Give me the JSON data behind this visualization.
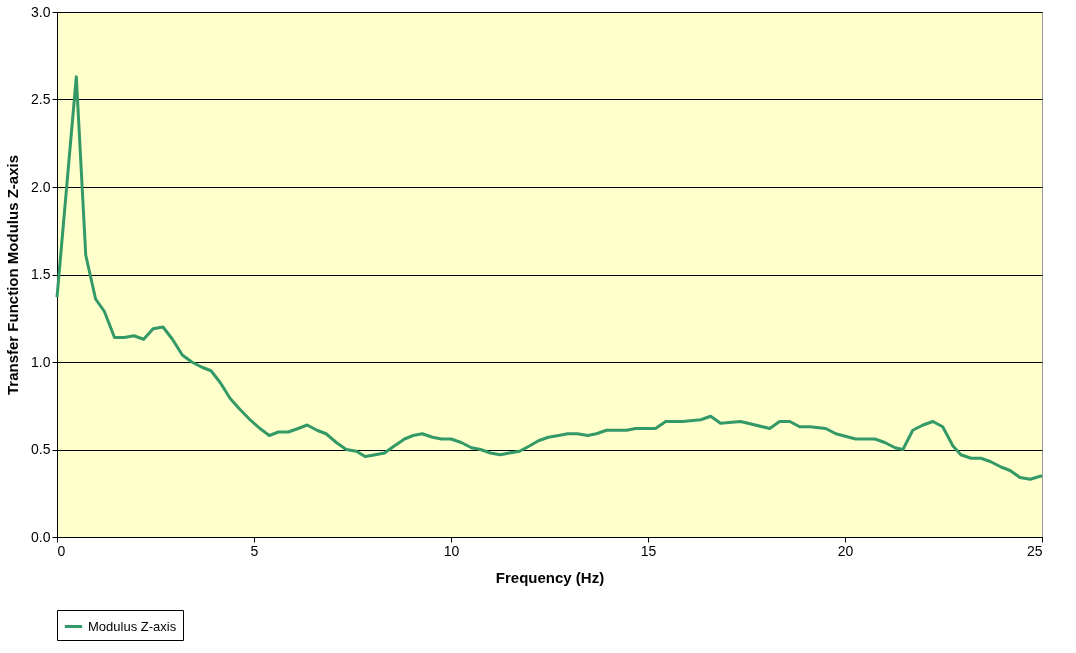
{
  "chart_data": {
    "type": "line",
    "xlabel": "Frequency  (Hz)",
    "ylabel": "Transfer Function Modulus Z-axis",
    "xlim": [
      0,
      25
    ],
    "xticks": [
      0,
      5,
      10,
      15,
      20,
      25
    ],
    "ylim": [
      0,
      3
    ],
    "yticks": [
      {
        "value": 0,
        "label": "0.0"
      },
      {
        "value": 0.5,
        "label": "0.5"
      },
      {
        "value": 1,
        "label": "1.0"
      },
      {
        "value": 1.5,
        "label": "1.5"
      },
      {
        "value": 2,
        "label": "2.0"
      },
      {
        "value": 2.5,
        "label": "2.5"
      },
      {
        "value": 3,
        "label": "3.0"
      }
    ],
    "grid": "y",
    "legend": "bottom",
    "marker": "none",
    "line_style": "solid",
    "series": [
      {
        "name": "Modulus Z-axis",
        "color": "#339966",
        "x": [
          0,
          0.49,
          0.73,
          0.98,
          1.2,
          1.46,
          1.71,
          1.95,
          2.2,
          2.44,
          2.69,
          2.93,
          3.18,
          3.42,
          3.68,
          3.91,
          4.15,
          4.4,
          4.64,
          4.9,
          5.15,
          5.39,
          5.62,
          5.87,
          6.12,
          6.35,
          6.6,
          6.83,
          7.09,
          7.34,
          7.6,
          7.82,
          8.08,
          8.31,
          8.56,
          8.82,
          9.04,
          9.27,
          9.53,
          9.76,
          10.0,
          10.26,
          10.52,
          10.75,
          11.0,
          11.25,
          11.48,
          11.74,
          11.99,
          12.22,
          12.47,
          12.73,
          12.96,
          13.21,
          13.47,
          13.69,
          13.95,
          14.2,
          14.46,
          14.68,
          14.94,
          15.19,
          15.45,
          15.88,
          16.34,
          16.59,
          16.84,
          17.35,
          18.09,
          18.34,
          18.6,
          18.85,
          19.11,
          19.51,
          19.77,
          20.27,
          20.76,
          21.01,
          21.27,
          21.47,
          21.72,
          21.98,
          22.23,
          22.48,
          22.74,
          22.94,
          23.2,
          23.45,
          23.7,
          23.96,
          24.19,
          24.44,
          24.7,
          25
        ],
        "values": [
          1.37,
          2.63,
          1.61,
          1.36,
          1.29,
          1.14,
          1.14,
          1.15,
          1.13,
          1.19,
          1.2,
          1.13,
          1.04,
          1.0,
          0.97,
          0.95,
          0.88,
          0.79,
          0.73,
          0.67,
          0.62,
          0.58,
          0.6,
          0.6,
          0.62,
          0.64,
          0.61,
          0.59,
          0.54,
          0.5,
          0.49,
          0.46,
          0.47,
          0.48,
          0.52,
          0.56,
          0.58,
          0.59,
          0.57,
          0.56,
          0.56,
          0.54,
          0.51,
          0.5,
          0.48,
          0.47,
          0.48,
          0.49,
          0.52,
          0.55,
          0.57,
          0.58,
          0.59,
          0.59,
          0.58,
          0.59,
          0.61,
          0.61,
          0.61,
          0.62,
          0.62,
          0.62,
          0.66,
          0.66,
          0.67,
          0.69,
          0.65,
          0.66,
          0.62,
          0.66,
          0.66,
          0.63,
          0.63,
          0.62,
          0.59,
          0.56,
          0.56,
          0.54,
          0.51,
          0.5,
          0.61,
          0.64,
          0.66,
          0.63,
          0.52,
          0.47,
          0.45,
          0.45,
          0.43,
          0.4,
          0.38,
          0.34,
          0.33,
          0.35
        ]
      }
    ]
  }
}
